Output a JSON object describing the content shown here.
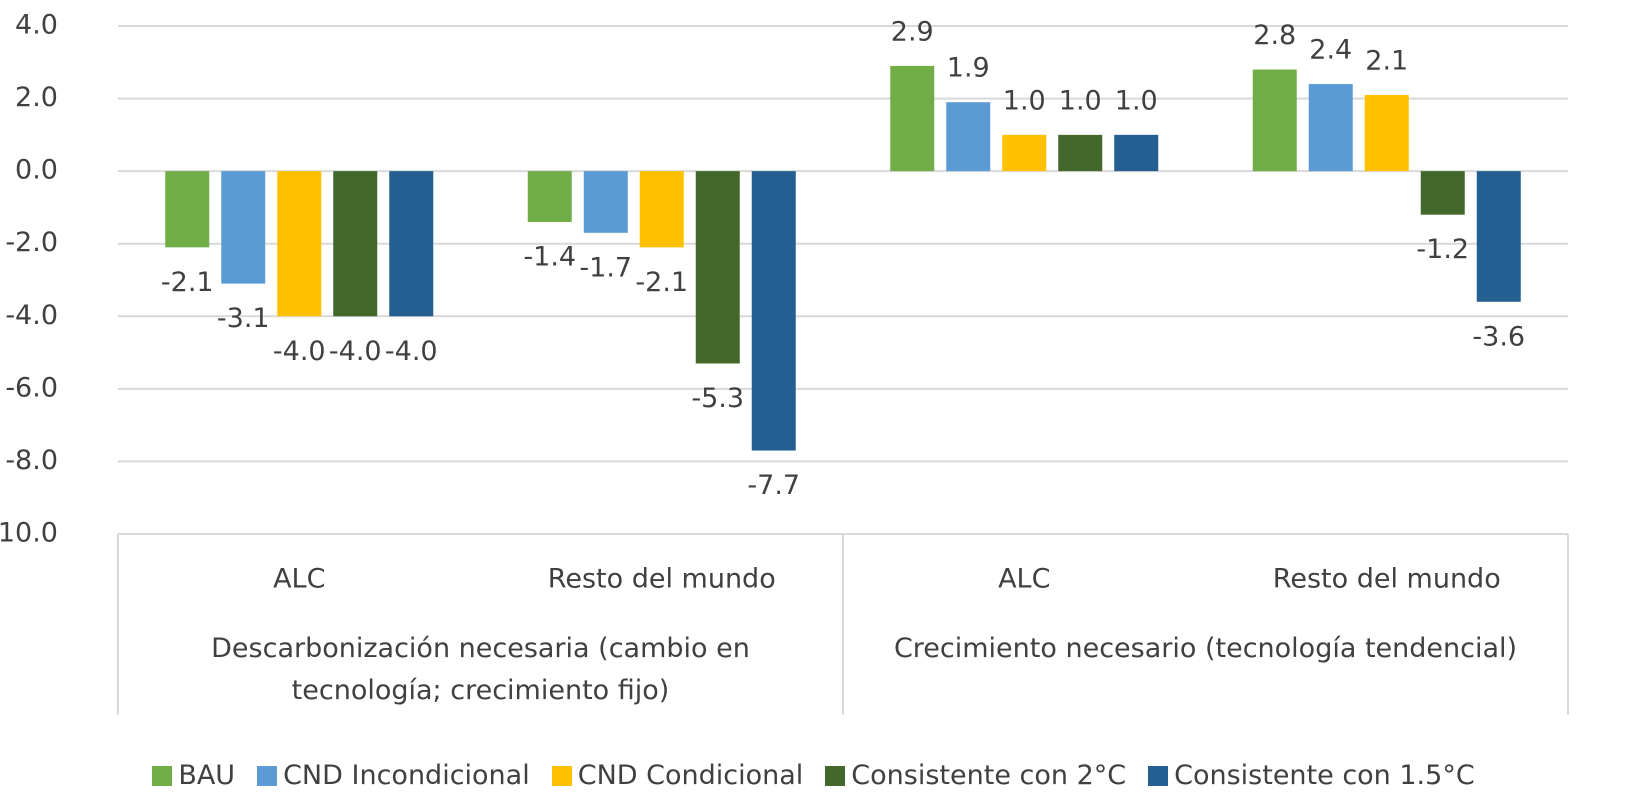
{
  "chart_data": {
    "type": "bar",
    "categories": [
      "ALC",
      "Resto del mundo",
      "ALC",
      "Resto del mundo"
    ],
    "group_labels": [
      "Descarbonización necesaria (cambio en tecnología; crecimiento fijo)",
      "Crecimiento necesario (tecnología tendencial)"
    ],
    "series": [
      {
        "name": "BAU",
        "color": "#70ad47",
        "values": [
          -2.1,
          -1.4,
          2.9,
          2.8
        ],
        "value_labels": [
          "-2.1",
          "-1.4",
          "2.9",
          "2.8"
        ]
      },
      {
        "name": "CND Incondicional",
        "color": "#5b9bd5",
        "values": [
          -3.1,
          -1.7,
          1.9,
          2.4
        ],
        "value_labels": [
          "-3.1",
          "-1.7",
          "1.9",
          "2.4"
        ]
      },
      {
        "name": "CND Condicional",
        "color": "#ffc000",
        "values": [
          -4.0,
          -2.1,
          1.0,
          2.1
        ],
        "value_labels": [
          "-4.0",
          "-2.1",
          "1.0",
          "2.1"
        ]
      },
      {
        "name": "Consistente con 2°C",
        "color": "#43682b",
        "values": [
          -4.0,
          -5.3,
          1.0,
          -1.2
        ],
        "value_labels": [
          "-4.0",
          "-5.3",
          "1.0",
          "-1.2"
        ]
      },
      {
        "name": "Consistente con 1.5°C",
        "color": "#255e91",
        "values": [
          -4.0,
          -7.7,
          1.0,
          -3.6
        ],
        "value_labels": [
          "-4.0",
          "-7.7",
          "1.0",
          "-3.6"
        ]
      }
    ],
    "ylim": [
      -10,
      4
    ],
    "yticks": [
      {
        "value": -10,
        "label": "-10.0"
      },
      {
        "value": -8,
        "label": "-8.0"
      },
      {
        "value": -6,
        "label": "-6.0"
      },
      {
        "value": -4,
        "label": "-4.0"
      },
      {
        "value": -2,
        "label": "-2.0"
      },
      {
        "value": 0,
        "label": "0.0"
      },
      {
        "value": 2,
        "label": "2.0"
      },
      {
        "value": 4,
        "label": "4.0"
      }
    ],
    "grid": true,
    "legend": "bottom"
  }
}
